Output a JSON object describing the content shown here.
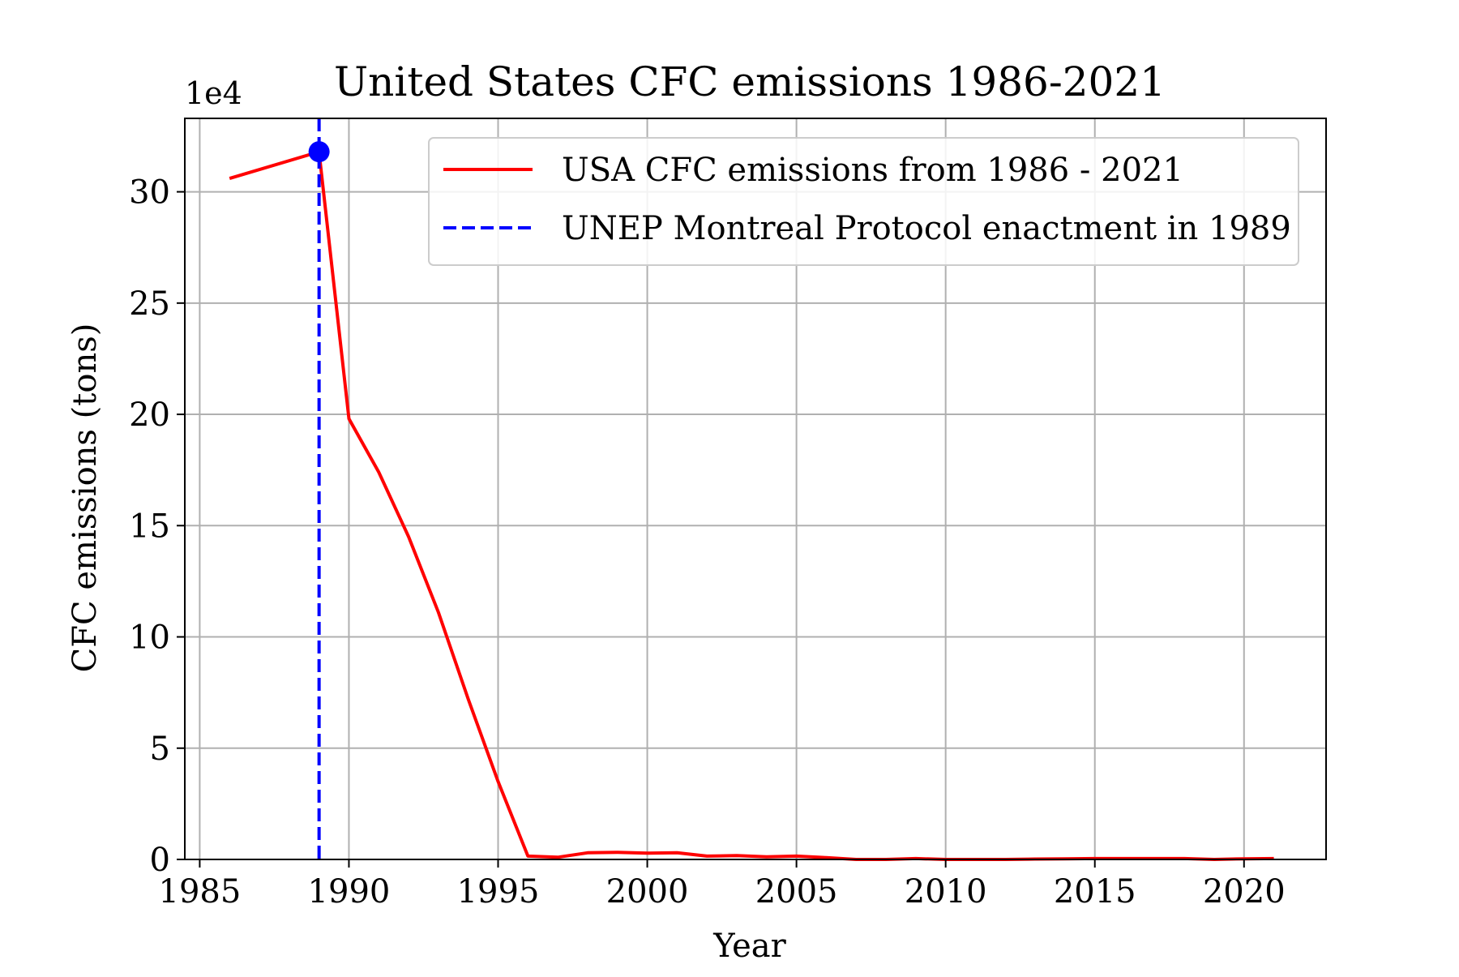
{
  "chart_data": {
    "type": "line",
    "title": "United States CFC emissions 1986-2021",
    "xlabel": "Year",
    "ylabel": "CFC emissions (tons)",
    "y_offset_label": "1e4",
    "xlim": [
      1984.5,
      2022.75
    ],
    "ylim": [
      0,
      33.3
    ],
    "x_ticks": [
      1985,
      1990,
      1995,
      2000,
      2005,
      2010,
      2015,
      2020
    ],
    "x_tick_labels": [
      "1985",
      "1990",
      "1995",
      "2000",
      "2005",
      "2010",
      "2015",
      "2020"
    ],
    "y_ticks": [
      0,
      5,
      10,
      15,
      20,
      25,
      30
    ],
    "y_tick_labels": [
      "0",
      "5",
      "10",
      "15",
      "20",
      "25",
      "30"
    ],
    "grid": true,
    "legend_position": "top-right",
    "series": [
      {
        "name": "USA CFC emissions from 1986 - 2021",
        "color": "#ff0000",
        "style": "solid",
        "x": [
          1986,
          1989,
          1990,
          1991,
          1992,
          1993,
          1994,
          1995,
          1996,
          1997,
          1998,
          1999,
          2000,
          2001,
          2002,
          2003,
          2004,
          2005,
          2006,
          2007,
          2008,
          2009,
          2010,
          2011,
          2012,
          2013,
          2014,
          2015,
          2016,
          2017,
          2018,
          2019,
          2020,
          2021
        ],
        "y": [
          30.6,
          31.8,
          19.8,
          17.4,
          14.5,
          11.1,
          7.2,
          3.5,
          0.15,
          0.1,
          0.3,
          0.32,
          0.28,
          0.3,
          0.15,
          0.17,
          0.12,
          0.15,
          0.08,
          0.0,
          0.0,
          0.04,
          0.0,
          0.0,
          0.0,
          0.02,
          0.03,
          0.04,
          0.04,
          0.04,
          0.04,
          0.0,
          0.03,
          0.04
        ]
      },
      {
        "name": "UNEP Montreal Protocol enactment in 1989",
        "color": "#0000ff",
        "style": "dashed",
        "vertical_line_x": 1989
      }
    ],
    "highlight_point": {
      "x": 1989,
      "y": 31.8,
      "color": "#0000ff"
    }
  }
}
